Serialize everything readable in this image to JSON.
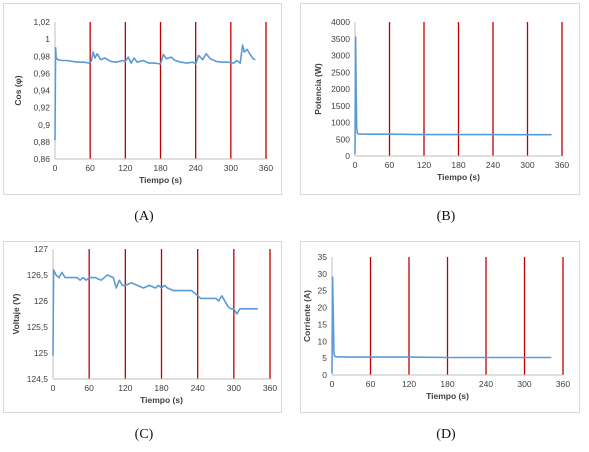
{
  "panels": [
    {
      "caption": "(A)",
      "chart_data": {
        "type": "line",
        "xlabel": "Tiempo  (s)",
        "ylabel": "Cos (φ)",
        "xlim": [
          0,
          360
        ],
        "ylim": [
          0.86,
          1.02
        ],
        "xticks": [
          "0",
          "60",
          "120",
          "180",
          "240",
          "300",
          "360"
        ],
        "yticks": [
          "0,86",
          "0,88",
          "0,9",
          "0,92",
          "0,94",
          "0,96",
          "0,98",
          "1",
          "1,02"
        ],
        "xtick_values": [
          0,
          60,
          120,
          180,
          240,
          300,
          360
        ],
        "ytick_values": [
          0.86,
          0.88,
          0.9,
          0.92,
          0.94,
          0.96,
          0.98,
          1.0,
          1.02
        ],
        "vlines": [
          60,
          120,
          180,
          240,
          300,
          360
        ],
        "series": [
          {
            "values": [
              [
                0,
                0.882
              ],
              [
                1,
                0.99
              ],
              [
                2,
                0.978
              ],
              [
                5,
                0.976
              ],
              [
                12,
                0.975
              ],
              [
                20,
                0.975
              ],
              [
                30,
                0.974
              ],
              [
                40,
                0.973
              ],
              [
                50,
                0.973
              ],
              [
                58,
                0.972
              ],
              [
                62,
                0.974
              ],
              [
                65,
                0.985
              ],
              [
                68,
                0.978
              ],
              [
                72,
                0.983
              ],
              [
                78,
                0.976
              ],
              [
                85,
                0.978
              ],
              [
                95,
                0.974
              ],
              [
                105,
                0.973
              ],
              [
                115,
                0.975
              ],
              [
                120,
                0.974
              ],
              [
                125,
                0.979
              ],
              [
                130,
                0.972
              ],
              [
                135,
                0.978
              ],
              [
                140,
                0.973
              ],
              [
                150,
                0.975
              ],
              [
                160,
                0.972
              ],
              [
                170,
                0.972
              ],
              [
                180,
                0.971
              ],
              [
                185,
                0.982
              ],
              [
                190,
                0.977
              ],
              [
                198,
                0.979
              ],
              [
                205,
                0.975
              ],
              [
                215,
                0.973
              ],
              [
                225,
                0.972
              ],
              [
                235,
                0.973
              ],
              [
                240,
                0.971
              ],
              [
                245,
                0.981
              ],
              [
                252,
                0.976
              ],
              [
                258,
                0.983
              ],
              [
                265,
                0.977
              ],
              [
                275,
                0.974
              ],
              [
                285,
                0.973
              ],
              [
                295,
                0.973
              ],
              [
                305,
                0.972
              ],
              [
                310,
                0.975
              ],
              [
                316,
                0.972
              ],
              [
                320,
                0.993
              ],
              [
                323,
                0.985
              ],
              [
                328,
                0.988
              ],
              [
                333,
                0.982
              ],
              [
                338,
                0.977
              ],
              [
                342,
                0.976
              ]
            ]
          }
        ]
      }
    },
    {
      "caption": "(B)",
      "chart_data": {
        "type": "line",
        "xlabel": "Tiempo  (s)",
        "ylabel": "Potencia (W)",
        "xlim": [
          0,
          360
        ],
        "ylim": [
          0,
          4000
        ],
        "xticks": [
          "0",
          "60",
          "120",
          "180",
          "240",
          "300",
          "360"
        ],
        "yticks": [
          "0",
          "500",
          "1000",
          "1500",
          "2000",
          "2500",
          "3000",
          "3500",
          "4000"
        ],
        "xtick_values": [
          0,
          60,
          120,
          180,
          240,
          300,
          360
        ],
        "ytick_values": [
          0,
          500,
          1000,
          1500,
          2000,
          2500,
          3000,
          3500,
          4000
        ],
        "vlines": [
          60,
          120,
          180,
          240,
          300,
          360
        ],
        "series": [
          {
            "values": [
              [
                0,
                60
              ],
              [
                1,
                3550
              ],
              [
                2,
                2100
              ],
              [
                3,
                850
              ],
              [
                4,
                680
              ],
              [
                6,
                660
              ],
              [
                20,
                650
              ],
              [
                60,
                650
              ],
              [
                120,
                640
              ],
              [
                180,
                640
              ],
              [
                240,
                640
              ],
              [
                300,
                635
              ],
              [
                342,
                635
              ]
            ]
          }
        ]
      }
    },
    {
      "caption": "(C)",
      "chart_data": {
        "type": "line",
        "xlabel": "Tiempo  (s)",
        "ylabel": "Voltaje (V)",
        "xlim": [
          0,
          360
        ],
        "ylim": [
          124.5,
          127
        ],
        "xticks": [
          "0",
          "60",
          "120",
          "180",
          "240",
          "300",
          "360"
        ],
        "yticks": [
          "124,5",
          "125",
          "125,5",
          "126",
          "126,5",
          "127"
        ],
        "xtick_values": [
          0,
          60,
          120,
          180,
          240,
          300,
          360
        ],
        "ytick_values": [
          124.5,
          125,
          125.5,
          126,
          126.5,
          127
        ],
        "vlines": [
          60,
          120,
          180,
          240,
          300,
          360
        ],
        "series": [
          {
            "values": [
              [
                0,
                124.95
              ],
              [
                1,
                126.6
              ],
              [
                5,
                126.5
              ],
              [
                10,
                126.45
              ],
              [
                15,
                126.55
              ],
              [
                20,
                126.45
              ],
              [
                30,
                126.45
              ],
              [
                40,
                126.45
              ],
              [
                45,
                126.4
              ],
              [
                50,
                126.45
              ],
              [
                55,
                126.4
              ],
              [
                60,
                126.45
              ],
              [
                70,
                126.45
              ],
              [
                80,
                126.4
              ],
              [
                90,
                126.5
              ],
              [
                100,
                126.45
              ],
              [
                105,
                126.25
              ],
              [
                110,
                126.4
              ],
              [
                115,
                126.3
              ],
              [
                120,
                126.3
              ],
              [
                130,
                126.35
              ],
              [
                140,
                126.3
              ],
              [
                150,
                126.25
              ],
              [
                160,
                126.3
              ],
              [
                170,
                126.25
              ],
              [
                175,
                126.3
              ],
              [
                180,
                126.25
              ],
              [
                185,
                126.3
              ],
              [
                190,
                126.25
              ],
              [
                200,
                126.2
              ],
              [
                210,
                126.2
              ],
              [
                220,
                126.2
              ],
              [
                230,
                126.2
              ],
              [
                240,
                126.1
              ],
              [
                245,
                126.05
              ],
              [
                250,
                126.05
              ],
              [
                260,
                126.05
              ],
              [
                270,
                126.05
              ],
              [
                275,
                126.0
              ],
              [
                280,
                126.1
              ],
              [
                290,
                125.9
              ],
              [
                295,
                125.85
              ],
              [
                300,
                125.85
              ],
              [
                305,
                125.75
              ],
              [
                310,
                125.85
              ],
              [
                320,
                125.85
              ],
              [
                330,
                125.85
              ],
              [
                340,
                125.85
              ]
            ]
          }
        ]
      }
    },
    {
      "caption": "(D)",
      "chart_data": {
        "type": "line",
        "xlabel": "Tiempo  (s)",
        "ylabel": "Corriente (A)",
        "xlim": [
          0,
          360
        ],
        "ylim": [
          0,
          35
        ],
        "xticks": [
          "0",
          "60",
          "120",
          "180",
          "240",
          "300",
          "360"
        ],
        "yticks": [
          "0",
          "5",
          "10",
          "15",
          "20",
          "25",
          "30",
          "35"
        ],
        "xtick_values": [
          0,
          60,
          120,
          180,
          240,
          300,
          360
        ],
        "ytick_values": [
          0,
          5,
          10,
          15,
          20,
          25,
          30,
          35
        ],
        "vlines": [
          60,
          120,
          180,
          240,
          300,
          360
        ],
        "series": [
          {
            "values": [
              [
                0,
                0.5
              ],
              [
                1,
                29
              ],
              [
                2,
                18
              ],
              [
                3,
                7
              ],
              [
                4,
                5.6
              ],
              [
                6,
                5.4
              ],
              [
                30,
                5.3
              ],
              [
                60,
                5.3
              ],
              [
                120,
                5.3
              ],
              [
                180,
                5.2
              ],
              [
                240,
                5.2
              ],
              [
                300,
                5.2
              ],
              [
                342,
                5.2
              ]
            ]
          }
        ]
      }
    }
  ],
  "colors": {
    "series": "#5b9bd5",
    "vline": "#c00000",
    "axis": "#404040",
    "border": "#d9d9d9"
  }
}
